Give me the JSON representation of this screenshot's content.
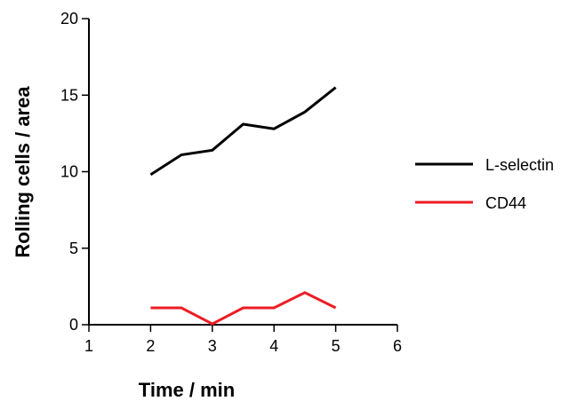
{
  "chart_data": {
    "type": "line",
    "title": "",
    "xlabel": "Time / min",
    "ylabel": "Rolling cells / area",
    "xlim": [
      1,
      6
    ],
    "ylim": [
      0,
      20
    ],
    "x_ticks": [
      "1",
      "2",
      "3",
      "4",
      "5",
      "6"
    ],
    "y_ticks": [
      "0",
      "5",
      "10",
      "15",
      "20"
    ],
    "grid": false,
    "legend_position": "right",
    "series": [
      {
        "name": "L-selectin",
        "color": "#000000",
        "x": [
          2,
          2.5,
          3,
          3.5,
          4,
          4.5,
          5
        ],
        "y": [
          9.8,
          11.1,
          11.4,
          13.1,
          12.8,
          13.9,
          15.5
        ]
      },
      {
        "name": "CD44",
        "color": "#ee1c24",
        "x": [
          2,
          2.5,
          3,
          3.5,
          4,
          4.5,
          5
        ],
        "y": [
          1.1,
          1.1,
          0.05,
          1.1,
          1.1,
          2.1,
          1.1
        ]
      }
    ]
  }
}
